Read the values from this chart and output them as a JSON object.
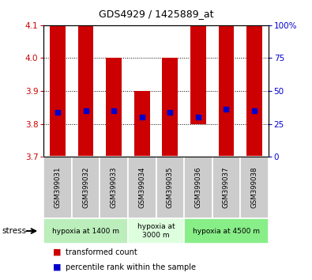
{
  "title": "GDS4929 / 1425889_at",
  "samples": [
    "GSM399031",
    "GSM399032",
    "GSM399033",
    "GSM399034",
    "GSM399035",
    "GSM399036",
    "GSM399037",
    "GSM399038"
  ],
  "bar_top": [
    4.1,
    4.1,
    4.0,
    3.9,
    4.0,
    4.1,
    4.1,
    4.1
  ],
  "bar_bottom": [
    3.7,
    3.7,
    3.7,
    3.7,
    3.7,
    3.8,
    3.7,
    3.7
  ],
  "percentile_values": [
    3.835,
    3.84,
    3.84,
    3.82,
    3.835,
    3.82,
    3.845,
    3.84
  ],
  "ylim_left": [
    3.7,
    4.1
  ],
  "ylim_right": [
    0,
    100
  ],
  "yticks_left": [
    3.7,
    3.8,
    3.9,
    4.0,
    4.1
  ],
  "yticks_right": [
    0,
    25,
    50,
    75,
    100
  ],
  "ytick_right_labels": [
    "0",
    "25",
    "50",
    "75",
    "100%"
  ],
  "bar_color": "#cc0000",
  "percentile_color": "#0000cc",
  "bar_width": 0.55,
  "groups": [
    {
      "label": "hypoxia at 1400 m",
      "indices": [
        0,
        1,
        2
      ],
      "color": "#bbeebb"
    },
    {
      "label": "hypoxia at\n3000 m",
      "indices": [
        3,
        4
      ],
      "color": "#ddffdd"
    },
    {
      "label": "hypoxia at 4500 m",
      "indices": [
        5,
        6,
        7
      ],
      "color": "#88ee88"
    }
  ],
  "stress_label": "stress",
  "legend_items": [
    {
      "color": "#cc0000",
      "label": "transformed count"
    },
    {
      "color": "#0000cc",
      "label": "percentile rank within the sample"
    }
  ],
  "left_tick_color": "#cc0000",
  "right_tick_color": "#0000cc",
  "sample_area_color": "#cccccc",
  "dotted_line_values": [
    3.8,
    3.9,
    4.0
  ],
  "bg_color": "#ffffff"
}
